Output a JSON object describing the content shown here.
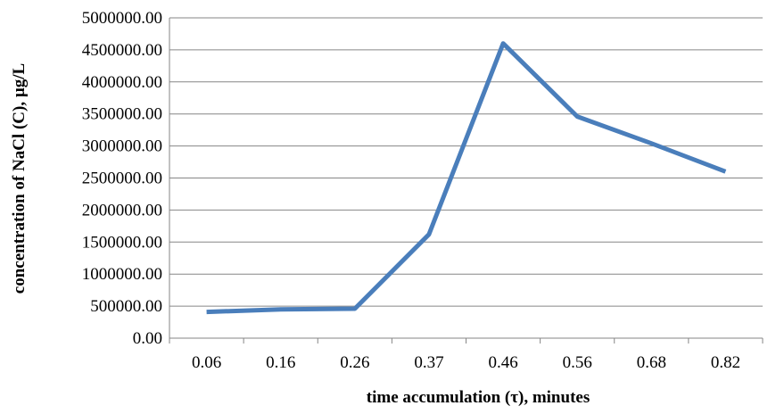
{
  "chart_data": {
    "type": "line",
    "title": "",
    "xlabel": "time accumulation (τ), minutes",
    "ylabel": "concentration of NaCl (C), µg/L",
    "categories": [
      "0.06",
      "0.16",
      "0.26",
      "0.37",
      "0.46",
      "0.56",
      "0.68",
      "0.82"
    ],
    "series": [
      {
        "name": "",
        "values": [
          410000,
          450000,
          460000,
          1620000,
          4600000,
          3460000,
          3040000,
          2600000
        ],
        "color": "#4a7ebb"
      }
    ],
    "ylim": [
      0,
      5000000
    ],
    "yticks": [
      "0.00",
      "500000.00",
      "1000000.00",
      "1500000.00",
      "2000000.00",
      "2500000.00",
      "3000000.00",
      "3500000.00",
      "4000000.00",
      "4500000.00",
      "5000000.00"
    ],
    "grid": true,
    "legend": "none"
  }
}
